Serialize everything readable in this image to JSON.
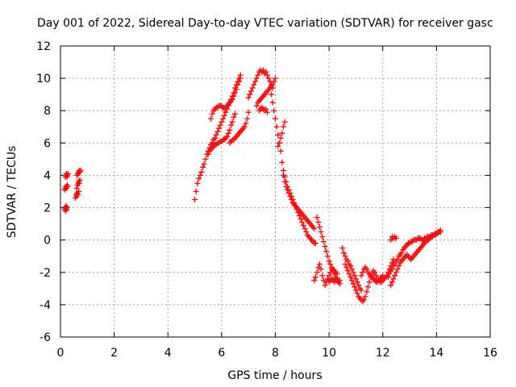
{
  "chart_data": {
    "type": "scatter",
    "title": "Day 001 of 2022, Sidereal Day-to-day VTEC variation (SDTVAR) for receiver gasc",
    "xlabel": "GPS time / hours",
    "ylabel": "SDTVAR / TECUs",
    "xlim": [
      0,
      16
    ],
    "ylim": [
      -6,
      12
    ],
    "xticks": [
      0,
      2,
      4,
      6,
      8,
      10,
      12,
      14,
      16
    ],
    "yticks": [
      -6,
      -4,
      -2,
      0,
      2,
      4,
      6,
      8,
      10,
      12
    ],
    "grid": true,
    "marker": "+",
    "color": "#ff0000",
    "series": [
      {
        "name": "SDTVAR",
        "x": [
          0.15,
          0.17,
          0.19,
          0.21,
          0.23,
          0.25,
          0.15,
          0.18,
          0.2,
          0.22,
          0.25,
          0.27,
          0.18,
          0.2,
          0.22,
          0.24,
          0.26,
          0.28,
          0.55,
          0.58,
          0.6,
          0.62,
          0.65,
          0.68,
          0.6,
          0.63,
          0.66,
          0.68,
          0.7,
          0.72,
          0.62,
          0.65,
          0.68,
          0.7,
          0.73,
          0.75,
          5.0,
          5.05,
          5.1,
          5.15,
          5.2,
          5.25,
          5.3,
          5.35,
          5.4,
          5.45,
          5.5,
          5.55,
          5.6,
          5.65,
          5.7,
          5.75,
          5.8,
          5.85,
          5.9,
          5.95,
          6.0,
          6.05,
          6.1,
          6.15,
          6.2,
          6.25,
          6.3,
          6.35,
          6.4,
          6.45,
          6.5,
          6.55,
          6.6,
          6.65,
          6.7,
          5.6,
          5.65,
          5.7,
          5.75,
          5.8,
          5.85,
          5.9,
          5.95,
          6.0,
          6.05,
          6.1,
          6.15,
          6.2,
          6.25,
          6.3,
          6.35,
          6.4,
          6.45,
          6.5,
          6.55,
          6.6,
          6.65,
          6.7,
          5.5,
          5.55,
          5.6,
          5.65,
          5.7,
          5.75,
          5.8,
          5.85,
          5.9,
          5.95,
          6.0,
          6.05,
          6.1,
          6.15,
          6.2,
          6.25,
          6.3,
          6.35,
          6.4,
          6.45,
          6.5,
          6.3,
          6.35,
          6.4,
          6.45,
          6.5,
          6.55,
          6.6,
          6.65,
          6.7,
          6.75,
          6.8,
          6.85,
          6.9,
          6.95,
          7.0,
          7.0,
          7.05,
          7.1,
          7.15,
          7.2,
          7.25,
          7.3,
          7.35,
          7.4,
          7.45,
          7.5,
          7.55,
          7.6,
          7.65,
          7.7,
          7.75,
          7.8,
          7.85,
          7.9,
          7.3,
          7.35,
          7.4,
          7.45,
          7.5,
          7.55,
          7.6,
          7.65,
          7.7,
          7.75,
          7.8,
          7.85,
          7.9,
          7.95,
          8.0,
          7.4,
          7.45,
          7.5,
          7.55,
          7.6,
          7.65,
          7.7,
          7.85,
          7.9,
          7.95,
          8.0,
          8.05,
          8.1,
          8.15,
          8.2,
          8.25,
          8.3,
          8.35,
          8.4,
          8.45,
          8.5,
          8.55,
          8.6,
          8.65,
          8.7,
          8.75,
          8.8,
          8.85,
          8.9,
          8.95,
          9.0,
          9.05,
          9.1,
          9.15,
          9.2,
          9.25,
          9.3,
          9.35,
          9.4,
          9.45,
          9.5,
          8.3,
          8.35,
          8.4,
          8.45,
          8.5,
          8.55,
          8.6,
          8.65,
          8.7,
          8.75,
          8.8,
          8.85,
          8.9,
          8.95,
          9.0,
          9.05,
          9.1,
          9.15,
          9.2,
          9.25,
          9.3,
          9.35,
          9.4,
          9.45,
          8.1,
          8.15,
          8.2,
          8.25,
          8.3,
          8.35,
          9.55,
          9.6,
          9.65,
          9.7,
          9.75,
          9.8,
          9.85,
          9.9,
          9.95,
          10.0,
          10.05,
          10.1,
          10.15,
          10.2,
          10.25,
          10.3,
          9.45,
          9.5,
          9.55,
          9.6,
          9.65,
          9.7,
          9.75,
          9.8,
          9.85,
          9.9,
          9.95,
          10.0,
          10.05,
          10.1,
          10.15,
          10.2,
          10.25,
          10.3,
          10.35,
          10.4,
          10.0,
          10.05,
          10.1,
          10.15,
          10.2,
          10.25,
          10.3,
          10.35,
          10.4,
          10.5,
          10.55,
          10.6,
          10.65,
          10.7,
          10.75,
          10.8,
          10.85,
          10.9,
          10.95,
          11.0,
          11.05,
          11.1,
          11.15,
          11.2,
          10.6,
          10.65,
          10.7,
          10.75,
          10.8,
          10.85,
          10.9,
          10.95,
          11.0,
          11.05,
          11.1,
          11.15,
          11.2,
          11.25,
          11.3,
          11.35,
          11.4,
          11.45,
          11.5,
          11.55,
          11.6,
          11.65,
          11.7,
          11.75,
          11.8,
          11.85,
          11.9,
          11.95,
          12.0,
          12.05,
          12.1,
          12.15,
          12.2,
          12.25,
          12.3,
          12.35,
          12.4,
          11.2,
          11.25,
          11.3,
          11.35,
          11.4,
          11.45,
          11.5,
          11.55,
          11.6,
          11.65,
          11.7,
          11.75,
          11.8,
          11.85,
          11.9,
          11.95,
          12.0,
          12.2,
          12.25,
          12.3,
          12.35,
          12.4,
          12.45,
          12.5,
          12.55,
          12.6,
          12.65,
          12.7,
          12.75,
          12.8,
          12.85,
          12.9,
          12.95,
          13.0,
          13.05,
          13.1,
          13.15,
          13.2,
          13.25,
          13.3,
          13.35,
          13.4,
          13.45,
          13.5,
          13.55,
          13.6,
          13.65,
          13.7,
          13.75,
          13.8,
          13.85,
          13.9,
          13.95,
          14.0,
          14.05,
          14.1,
          14.15,
          12.3,
          12.35,
          12.4,
          12.45,
          12.5,
          12.55,
          12.6,
          12.65,
          12.7,
          12.75,
          12.8,
          12.85,
          12.9,
          12.95,
          13.0,
          13.05,
          13.1,
          13.15,
          13.2,
          13.25,
          13.3,
          13.35,
          13.4,
          13.45,
          13.5,
          13.55,
          13.6,
          13.65,
          13.7,
          13.75,
          13.8,
          13.85,
          13.9,
          13.95,
          14.0,
          14.05,
          14.1,
          14.15,
          12.3,
          12.35,
          12.4,
          12.45,
          12.5
        ],
        "y": [
          1.9,
          2.0,
          1.8,
          2.1,
          1.9,
          2.0,
          3.1,
          3.2,
          3.3,
          3.2,
          3.4,
          3.3,
          3.9,
          4.0,
          4.1,
          3.9,
          4.0,
          4.1,
          2.6,
          2.8,
          2.7,
          2.9,
          2.8,
          3.0,
          3.2,
          3.4,
          3.5,
          3.6,
          3.5,
          3.7,
          4.0,
          4.1,
          4.2,
          4.3,
          4.2,
          4.3,
          2.5,
          3.0,
          3.5,
          3.8,
          4.0,
          4.2,
          4.5,
          4.7,
          5.0,
          5.3,
          5.5,
          5.7,
          5.9,
          6.0,
          6.2,
          6.3,
          6.5,
          6.7,
          6.9,
          7.1,
          7.3,
          7.5,
          7.7,
          7.9,
          8.1,
          8.3,
          8.5,
          8.7,
          8.9,
          9.1,
          9.4,
          9.6,
          9.8,
          10.0,
          10.2,
          7.5,
          7.8,
          8.0,
          8.1,
          8.2,
          8.2,
          8.3,
          8.3,
          8.3,
          8.2,
          8.1,
          8.2,
          8.3,
          8.4,
          8.5,
          8.6,
          8.7,
          8.9,
          9.1,
          9.3,
          9.6,
          9.8,
          10.0,
          5.3,
          5.5,
          5.6,
          5.7,
          5.8,
          5.9,
          5.9,
          6.0,
          6.0,
          6.1,
          6.1,
          6.2,
          6.2,
          6.3,
          6.4,
          6.6,
          6.8,
          7.1,
          7.3,
          7.6,
          7.8,
          6.0,
          6.1,
          6.2,
          6.2,
          6.3,
          6.4,
          6.5,
          6.6,
          6.7,
          6.8,
          6.9,
          7.0,
          7.2,
          7.5,
          7.9,
          8.8,
          9.0,
          9.2,
          9.4,
          9.6,
          9.8,
          10.0,
          10.2,
          10.4,
          10.5,
          10.4,
          10.5,
          10.3,
          10.4,
          10.2,
          10.0,
          9.8,
          9.6,
          9.4,
          8.3,
          8.5,
          8.6,
          8.7,
          8.8,
          8.9,
          9.0,
          9.1,
          9.2,
          9.3,
          9.4,
          9.5,
          9.6,
          9.8,
          10.0,
          8.0,
          8.1,
          8.2,
          8.1,
          8.0,
          8.1,
          7.9,
          9.0,
          8.5,
          8.0,
          7.5,
          7.0,
          6.5,
          6.0,
          5.5,
          4.8,
          4.3,
          3.9,
          3.6,
          3.3,
          3.1,
          2.9,
          2.7,
          2.5,
          2.3,
          2.1,
          1.9,
          1.7,
          1.5,
          1.3,
          1.1,
          0.9,
          0.7,
          0.5,
          0.3,
          0.2,
          0.1,
          0.0,
          -0.1,
          -0.2,
          -0.2,
          4.0,
          3.6,
          3.3,
          3.1,
          2.9,
          2.7,
          2.5,
          2.3,
          2.2,
          2.1,
          2.0,
          1.9,
          1.8,
          1.7,
          1.6,
          1.5,
          1.4,
          1.3,
          1.2,
          1.1,
          1.0,
          0.9,
          0.8,
          0.7,
          5.8,
          6.0,
          6.3,
          6.6,
          7.0,
          7.3,
          1.4,
          1.1,
          0.8,
          0.5,
          0.2,
          -0.1,
          -0.4,
          -0.7,
          -1.0,
          -1.3,
          -1.5,
          -1.7,
          -1.8,
          -1.9,
          -2.0,
          -2.1,
          -2.5,
          -2.3,
          -2.0,
          -1.7,
          -1.5,
          -1.8,
          -2.2,
          -2.5,
          -2.8,
          -2.6,
          -2.4,
          -2.2,
          -2.0,
          -1.8,
          -1.9,
          -2.1,
          -2.3,
          -2.5,
          -2.6,
          -2.7,
          -2.6,
          -2.5,
          -2.4,
          -2.5,
          -2.6,
          -2.5,
          -2.4,
          -2.6,
          -2.5,
          -0.5,
          -0.8,
          -1.0,
          -1.2,
          -1.3,
          -1.5,
          -1.6,
          -1.8,
          -2.0,
          -2.2,
          -2.4,
          -2.6,
          -2.8,
          -3.0,
          -3.1,
          -1.5,
          -1.7,
          -1.9,
          -2.1,
          -2.3,
          -2.5,
          -2.7,
          -2.9,
          -3.1,
          -3.3,
          -3.5,
          -3.6,
          -3.7,
          -3.8,
          -3.7,
          -3.5,
          -3.2,
          -2.9,
          -2.6,
          -2.3,
          -2.1,
          -1.9,
          -2.0,
          -2.2,
          -2.4,
          -2.5,
          -2.6,
          -2.6,
          -2.5,
          -2.4,
          -2.3,
          -2.2,
          -2.0,
          -1.8,
          -1.6,
          -1.4,
          -1.2,
          -2.2,
          -2.0,
          -1.8,
          -1.7,
          -1.8,
          -2.0,
          -2.1,
          -2.2,
          -2.3,
          -2.4,
          -2.5,
          -2.6,
          -2.6,
          -2.5,
          -2.4,
          -2.3,
          -2.2,
          -2.3,
          -2.1,
          -1.9,
          -1.8,
          -1.6,
          -1.5,
          -1.3,
          -1.2,
          -1.0,
          -0.9,
          -0.8,
          -0.6,
          -0.5,
          -0.4,
          -0.3,
          -0.2,
          -0.2,
          -0.1,
          -0.1,
          0.0,
          0.0,
          0.0,
          0.1,
          0.1,
          0.1,
          0.0,
          0.0,
          0.1,
          0.1,
          0.2,
          0.2,
          0.2,
          0.3,
          0.3,
          0.3,
          0.4,
          0.4,
          0.5,
          0.5,
          0.6,
          -2.8,
          -2.6,
          -2.4,
          -2.2,
          -2.0,
          -1.8,
          -1.6,
          -1.4,
          -1.3,
          -1.2,
          -1.1,
          -1.0,
          -0.9,
          -1.0,
          -1.1,
          -1.2,
          -1.1,
          -1.0,
          -0.9,
          -0.8,
          -0.7,
          -0.6,
          -0.5,
          -0.4,
          -0.3,
          -0.2,
          -0.1,
          0.0,
          0.0,
          0.1,
          0.2,
          0.2,
          0.3,
          0.3,
          0.4,
          0.4,
          0.5,
          0.5,
          0.0,
          0.2,
          0.1,
          0.2,
          0.1
        ]
      }
    ]
  }
}
